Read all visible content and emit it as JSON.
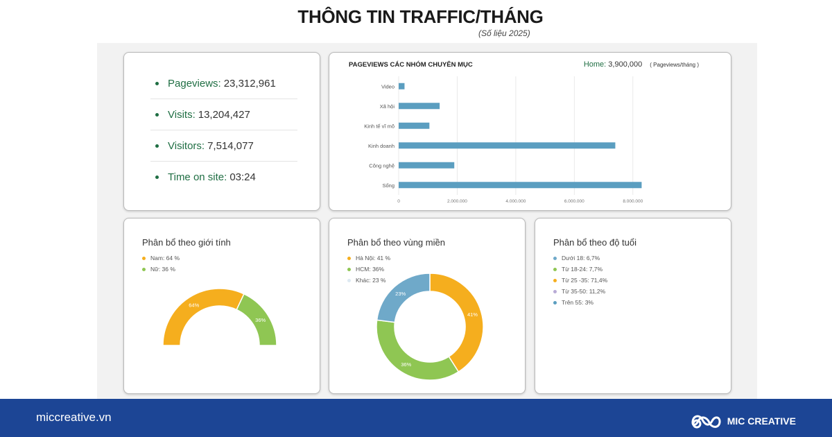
{
  "header": {
    "title": "THÔNG TIN TRAFFIC/THÁNG",
    "subtitle": "(Số liệu 2025)"
  },
  "stats": [
    {
      "label": "Pageviews:",
      "value": "23,312,961"
    },
    {
      "label": "Visits:",
      "value": "13,204,427"
    },
    {
      "label": "Visitors:",
      "value": "7,514,077"
    },
    {
      "label": "Time on site:",
      "value": "03:24"
    }
  ],
  "colors": {
    "green": "#1f6e43",
    "bar": "#5b9ec0",
    "orange": "#f5ae1e",
    "lime": "#8fc653",
    "blue": "#6fa9c9",
    "purple": "#b8abd6",
    "footer": "#1c4595"
  },
  "bar_note": {
    "label": "Home:",
    "value": "3,900,000",
    "unit": "( Pageviews/tháng )"
  },
  "chart_data": [
    {
      "type": "bar",
      "orientation": "horizontal",
      "title": "PAGEVIEWS CÁC NHÓM CHUYÊN MỤC",
      "categories": [
        "Video",
        "Xã hội",
        "Kinh tế vĩ mô",
        "Kinh doanh",
        "Công nghệ",
        "Sống"
      ],
      "values": [
        200000,
        1400000,
        1050000,
        7400000,
        1900000,
        8300000
      ],
      "xticks": [
        0,
        2000000,
        4000000,
        6000000,
        8000000
      ],
      "xtick_labels": [
        "0",
        "2.000.000",
        "4.000.000",
        "6.000.000",
        "8.000.000"
      ],
      "xlim": [
        0,
        9000000
      ],
      "grid": true
    },
    {
      "type": "pie",
      "variant": "half-donut",
      "title": "Phân bổ theo giới tính",
      "categories": [
        "Nam",
        "Nữ"
      ],
      "values": [
        64,
        36
      ],
      "legend": [
        "Nam: 64 %",
        "Nữ: 36 %"
      ],
      "labels": [
        "64%",
        "36%"
      ],
      "colors": [
        "#f5ae1e",
        "#8fc653"
      ]
    },
    {
      "type": "pie",
      "variant": "donut",
      "title": "Phân bổ theo vùng miền",
      "categories": [
        "Hà Nội",
        "HCM",
        "Khác"
      ],
      "values": [
        41,
        36,
        23
      ],
      "legend": [
        "Hà Nội: 41 %",
        "HCM: 36%",
        "Khác: 23 %"
      ],
      "labels": [
        "41%",
        "36%",
        "23%"
      ],
      "colors": [
        "#f5ae1e",
        "#8fc653",
        "#6fa9c9"
      ],
      "legend_colors": [
        "#f5ae1e",
        "#8fc653",
        "#dde9f2"
      ]
    },
    {
      "type": "pie",
      "title": "Phân bổ theo độ tuổi",
      "categories": [
        "Dưới 18",
        "Từ 18-24",
        "Từ 25-35",
        "Từ 35-50",
        "Trên 55"
      ],
      "values": [
        6.7,
        7.7,
        71.4,
        11.2,
        3
      ],
      "legend": [
        "Dưới 18: 6,7%",
        "Từ 18-24: 7,7%",
        "Từ 25 -35: 71,4%",
        "Từ 35-50: 11,2%",
        "Trên 55: 3%"
      ],
      "colors": [
        "#6fa9c9",
        "#8fc653",
        "#f5ae1e",
        "#b8abd6",
        "#5b9ec0"
      ]
    }
  ],
  "footer": {
    "site": "miccreative.vn",
    "brand": "MIC CREATIVE",
    "logo_icon": "mic-creative-logo-icon"
  }
}
